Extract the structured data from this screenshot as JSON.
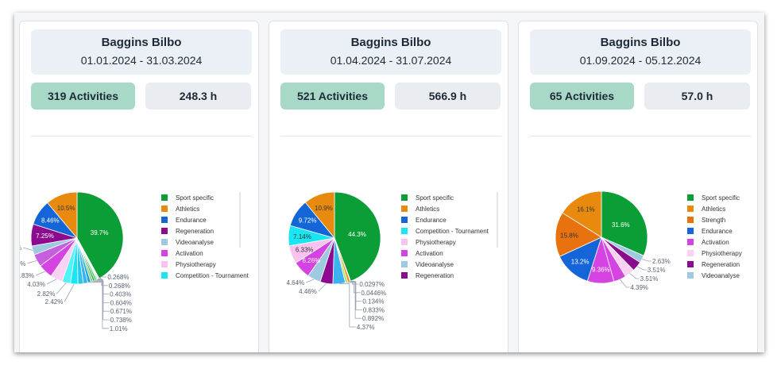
{
  "cards": [
    {
      "name": "Baggins Bilbo",
      "dates": "01.01.2024 - 31.03.2024",
      "activities": "319 Activities",
      "hours": "248.3 h"
    },
    {
      "name": "Baggins Bilbo",
      "dates": "01.04.2024 - 31.07.2024",
      "activities": "521 Activities",
      "hours": "566.9 h"
    },
    {
      "name": "Baggins Bilbo",
      "dates": "01.09.2024 - 05.12.2024",
      "activities": "65 Activities",
      "hours": "57.0 h"
    }
  ],
  "chart_data": [
    {
      "type": "pie",
      "legend": [
        "Sport specific",
        "Athletics",
        "Endurance",
        "Regeneration",
        "Videoanalyse",
        "Activation",
        "Physiotherapy",
        "Competition - Tournament"
      ],
      "slices": [
        {
          "value": 39.7,
          "label": "39.7%",
          "color": "#0c9e36"
        },
        {
          "value": 0.268,
          "label": "0.268%",
          "color": "#5bd65b"
        },
        {
          "value": 0.268,
          "label": "0.268%",
          "color": "#8ae27a"
        },
        {
          "value": 0.403,
          "label": "0.403%",
          "color": "#aee99a"
        },
        {
          "value": 0.604,
          "label": "0.604%",
          "color": "#34c25e"
        },
        {
          "value": 0.671,
          "label": "0.671%",
          "color": "#1fae4a"
        },
        {
          "value": 0.738,
          "label": "0.738%",
          "color": "#7ccf70"
        },
        {
          "value": 1.01,
          "label": "1.01%",
          "color": "#19a0e0"
        },
        {
          "value": 1.5,
          "label": "",
          "color": "#3cb3f0"
        },
        {
          "value": 1.8,
          "label": "",
          "color": "#26c9e8"
        },
        {
          "value": 2.42,
          "label": "2.42%",
          "color": "#19e6f2"
        },
        {
          "value": 2.82,
          "label": "2.82%",
          "color": "#52f2fa"
        },
        {
          "value": 4.03,
          "label": "4.03%",
          "color": "#fbd0f5"
        },
        {
          "value": 4.83,
          "label": "4.83%",
          "color": "#d544e3"
        },
        {
          "value": 4.17,
          "label": "4.17%",
          "color": "#c65ee0"
        },
        {
          "value": 3.0,
          "label": "3%",
          "color": "#9ecae1"
        },
        {
          "value": 7.25,
          "label": "7.25%",
          "color": "#8b0a8f"
        },
        {
          "value": 8.46,
          "label": "8.46%",
          "color": "#1466d8"
        },
        {
          "value": 10.5,
          "label": "10.5%",
          "color": "#e88a0e"
        }
      ]
    },
    {
      "type": "pie",
      "legend": [
        "Sport specific",
        "Athletics",
        "Endurance",
        "Competition - Tournament",
        "Physiotherapy",
        "Activation",
        "Videoanalyse",
        "Regeneration"
      ],
      "slices": [
        {
          "value": 44.3,
          "label": "44.3%",
          "color": "#0c9e36"
        },
        {
          "value": 0.0297,
          "label": "0.0297%",
          "color": "#6bd36b"
        },
        {
          "value": 0.0446,
          "label": "0.0446%",
          "color": "#8de27f"
        },
        {
          "value": 0.134,
          "label": "0.134%",
          "color": "#a8e8a0"
        },
        {
          "value": 0.833,
          "label": "0.833%",
          "color": "#e88a0e"
        },
        {
          "value": 0.892,
          "label": "0.892%",
          "color": "#b5e25b"
        },
        {
          "value": 4.37,
          "label": "4.37%",
          "color": "#3cb3f0"
        },
        {
          "value": 4.46,
          "label": "4.46%",
          "color": "#8b0a8f"
        },
        {
          "value": 4.64,
          "label": "4.64%",
          "color": "#9ecae1"
        },
        {
          "value": 6.26,
          "label": "6.26%",
          "color": "#d544e3"
        },
        {
          "value": 6.33,
          "label": "6.33%",
          "color": "#fbc2f0"
        },
        {
          "value": 7.14,
          "label": "7.14%",
          "color": "#19e6f2"
        },
        {
          "value": 9.72,
          "label": "9.72%",
          "color": "#1466d8"
        },
        {
          "value": 10.9,
          "label": "10.9%",
          "color": "#e88a0e"
        }
      ]
    },
    {
      "type": "pie",
      "legend": [
        "Sport specific",
        "Athletics",
        "Strength",
        "Endurance",
        "Activation",
        "Physiotherapy",
        "Regeneration",
        "Videoanalyse"
      ],
      "slices": [
        {
          "value": 31.6,
          "label": "31.6%",
          "color": "#0c9e36"
        },
        {
          "value": 2.63,
          "label": "2.63%",
          "color": "#9ecae1"
        },
        {
          "value": 3.51,
          "label": "3.51%",
          "color": "#8b0a8f"
        },
        {
          "value": 3.51,
          "label": "3.51%",
          "color": "#fbd0f5"
        },
        {
          "value": 4.39,
          "label": "4.39%",
          "color": "#d544e3"
        },
        {
          "value": 9.36,
          "label": "9.36%",
          "color": "#d544e3"
        },
        {
          "value": 13.2,
          "label": "13.2%",
          "color": "#1466d8"
        },
        {
          "value": 15.8,
          "label": "15.8%",
          "color": "#e8730e"
        },
        {
          "value": 16.1,
          "label": "16.1%",
          "color": "#e88a0e"
        }
      ]
    }
  ]
}
